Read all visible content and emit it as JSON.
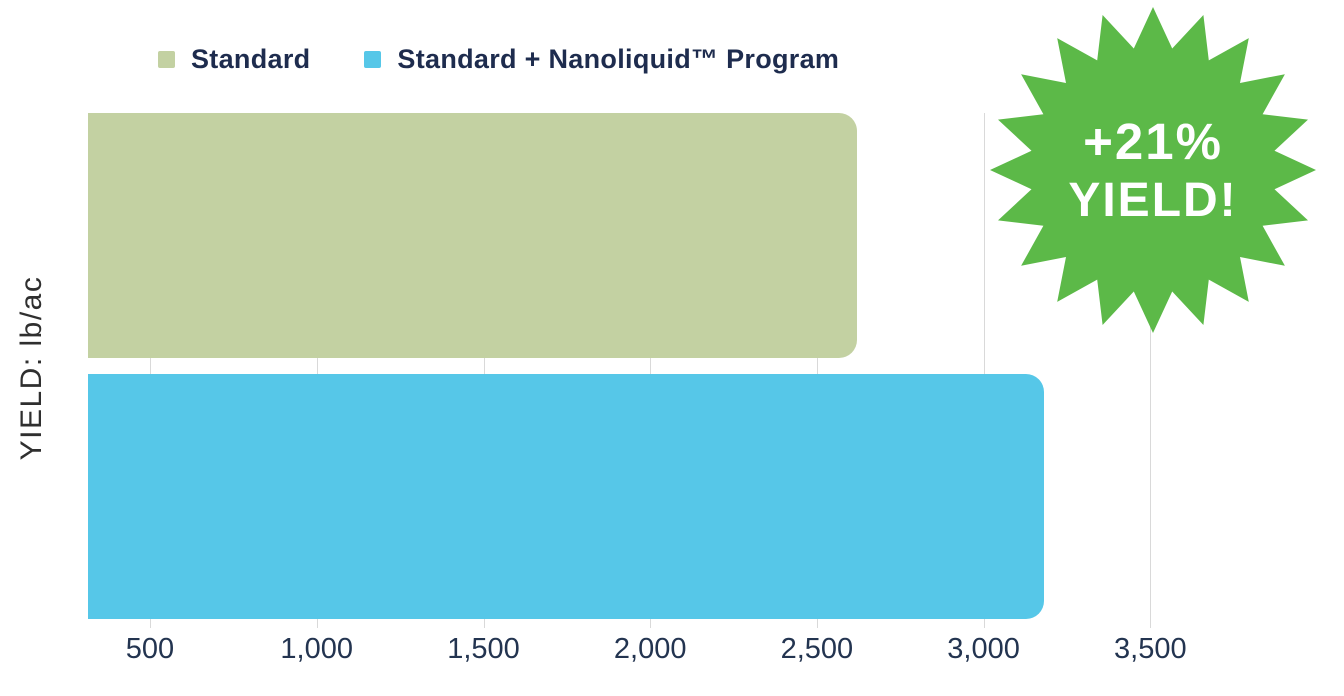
{
  "legend": {
    "items": [
      {
        "label": "Standard",
        "color": "#c3d1a2"
      },
      {
        "label": "Standard + Nanoliquid™ Program",
        "color": "#56c7e8"
      }
    ]
  },
  "badge": {
    "line1": "+21%",
    "line2": "YIELD!",
    "color": "#5cb948",
    "text_color": "#ffffff"
  },
  "chart_data": {
    "type": "bar",
    "orientation": "horizontal",
    "title": "",
    "xlabel": "",
    "ylabel": "YIELD:  lb/ac",
    "categories": [
      "Standard",
      "Standard + Nanoliquid™ Program"
    ],
    "values": [
      2620,
      3180
    ],
    "series_colors": [
      "#c3d1a2",
      "#56c7e8"
    ],
    "x_ticks": [
      500,
      1000,
      1500,
      2000,
      2500,
      3000,
      3500
    ],
    "x_tick_labels": [
      "500",
      "1,000",
      "1,500",
      "2,000",
      "2,500",
      "3,000",
      "3,500"
    ],
    "xlim": [
      314,
      3700
    ],
    "grid": "vertical-gridlines",
    "gridline_color": "#d9d9d9",
    "legend_position": "top",
    "annotation": "+21% YIELD!"
  }
}
